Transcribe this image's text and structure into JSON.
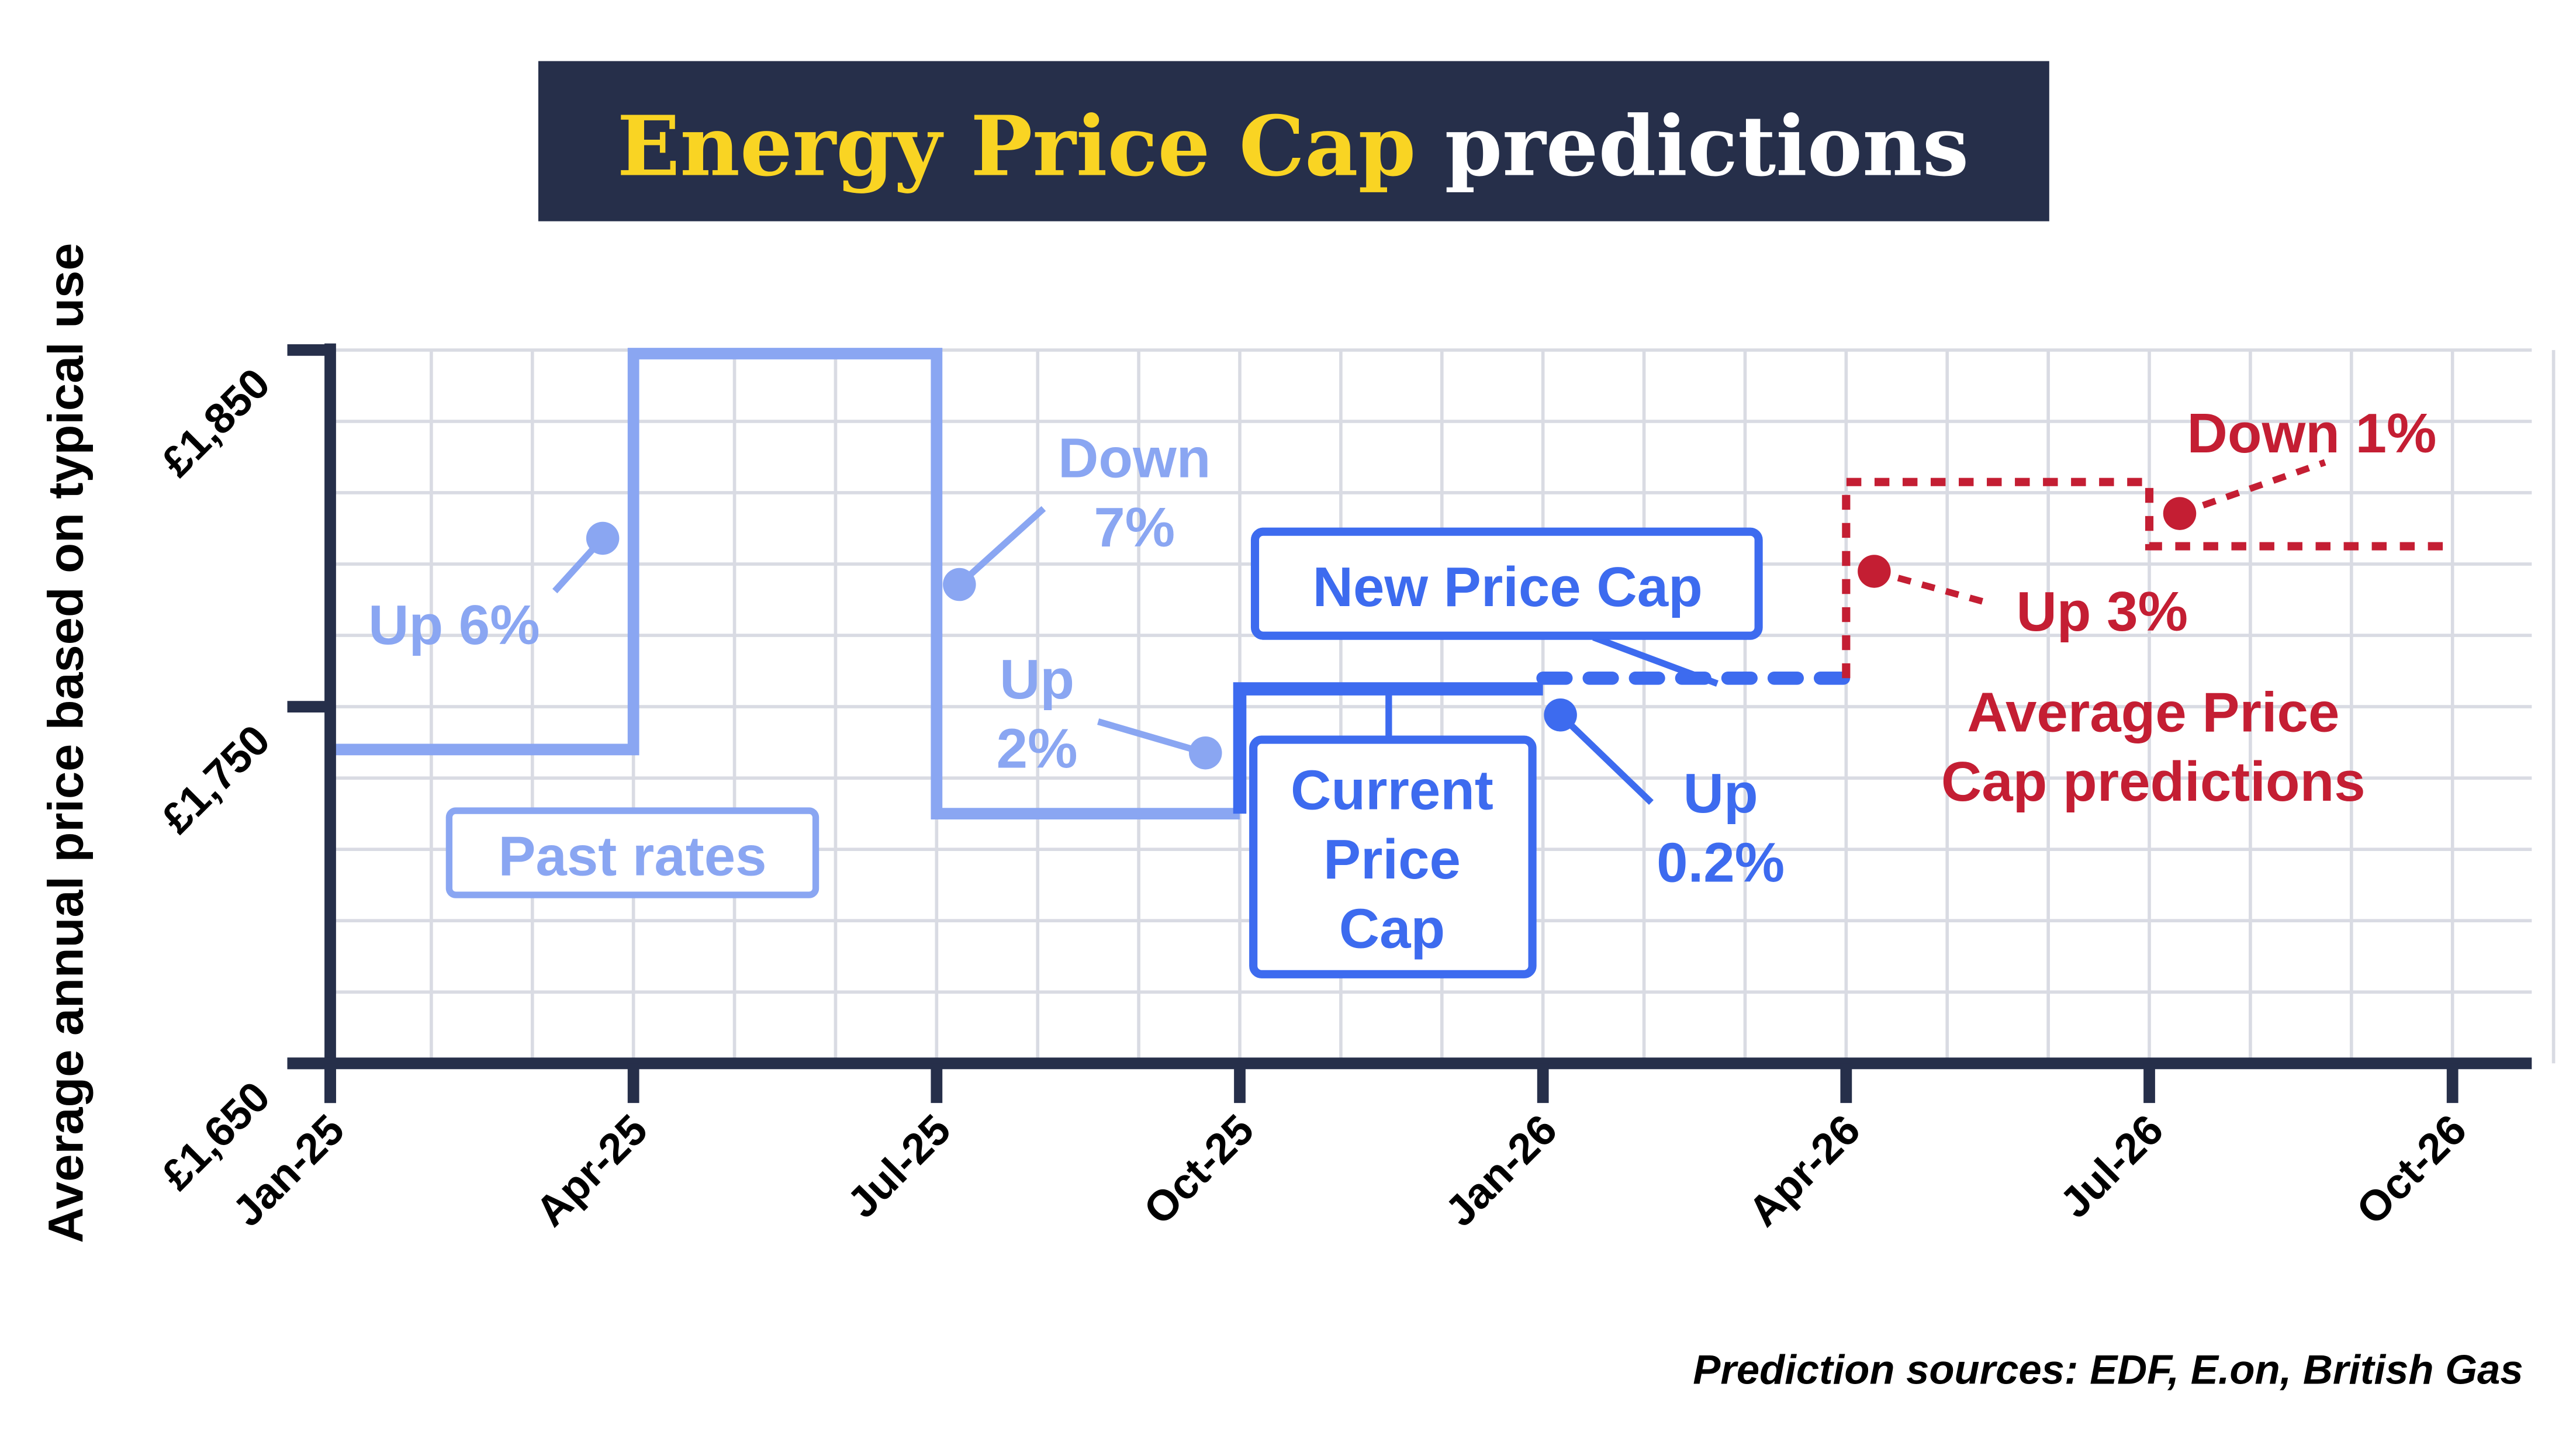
{
  "title": {
    "highlight": "Energy Price Cap",
    "rest": "predictions"
  },
  "colors": {
    "navy": "#262f4a",
    "yellow": "#f9d423",
    "past": "#8aa6f2",
    "current": "#3d6bef",
    "prediction": "#c41e33",
    "grid": "#d9dbe3"
  },
  "source_note": "Prediction sources: EDF, E.on, British Gas",
  "chart_data": {
    "type": "line",
    "step": true,
    "ylabel": "Average annual price based on typical use",
    "xlabel": "",
    "ylim": [
      1650,
      1850
    ],
    "yticks": [
      "£1,650",
      "£1,750",
      "£1,850"
    ],
    "ytick_values": [
      1650,
      1750,
      1850
    ],
    "xticks": [
      "Jan-25",
      "Apr-25",
      "Jul-25",
      "Oct-25",
      "Jan-26",
      "Apr-26",
      "Jul-26",
      "Oct-26"
    ],
    "grid": true,
    "series": [
      {
        "name": "Past rates",
        "style": "solid-faded",
        "segments": [
          {
            "from": "Jan-25",
            "to": "Apr-25",
            "value": 1738
          },
          {
            "from": "Apr-25",
            "to": "Jul-25",
            "value": 1849
          },
          {
            "from": "Jul-25",
            "to": "Oct-25",
            "value": 1720
          }
        ]
      },
      {
        "name": "Current Price Cap",
        "style": "solid",
        "segments": [
          {
            "from": "Oct-25",
            "to": "Jan-26",
            "value": 1755
          }
        ]
      },
      {
        "name": "New Price Cap",
        "style": "dashed",
        "segments": [
          {
            "from": "Jan-26",
            "to": "Apr-26",
            "value": 1758
          }
        ]
      },
      {
        "name": "Average Price Cap predictions",
        "style": "dotted",
        "segments": [
          {
            "from": "Apr-26",
            "to": "Jul-26",
            "value": 1813
          },
          {
            "from": "Jul-26",
            "to": "Oct-26",
            "value": 1795
          }
        ]
      }
    ],
    "annotations": [
      {
        "text": [
          "Up 6%"
        ],
        "series": "past"
      },
      {
        "text": [
          "Down",
          "7%"
        ],
        "series": "past"
      },
      {
        "text": [
          "Up",
          "2%"
        ],
        "series": "past"
      },
      {
        "text": [
          "Up",
          "0.2%"
        ],
        "series": "current"
      },
      {
        "text": [
          "Up 3%"
        ],
        "series": "prediction"
      },
      {
        "text": [
          "Down 1%"
        ],
        "series": "prediction"
      }
    ],
    "boxes": {
      "past": "Past rates",
      "current": [
        "Current",
        "Price",
        "Cap"
      ],
      "new": "New Price Cap",
      "prediction": [
        "Average Price",
        "Cap predictions"
      ]
    }
  }
}
